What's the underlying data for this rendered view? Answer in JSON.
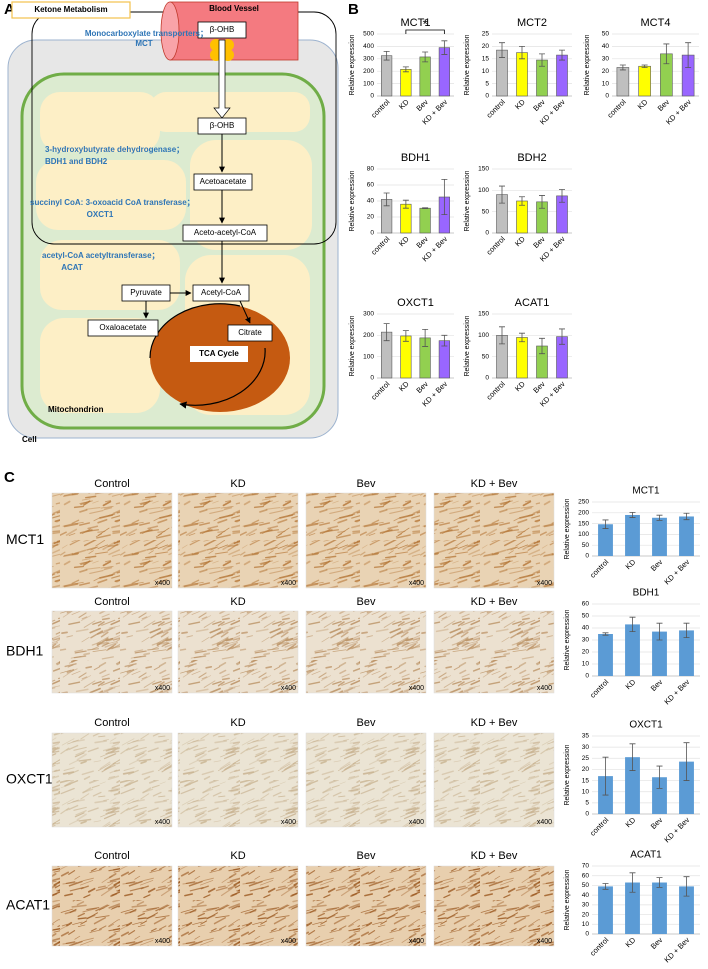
{
  "panel_labels": [
    "A",
    "B",
    "C"
  ],
  "diagram": {
    "title": "Ketone Metabolism",
    "blood_vessel": "Blood Vessel",
    "nodes": [
      "β-OHB",
      "β-OHB",
      "Acetoacetate",
      "Aceto-acetyl-CoA",
      "Pyruvate",
      "Acetyl-CoA",
      "Oxaloacetate",
      "Citrate",
      "TCA Cycle"
    ],
    "enzymes": [
      [
        "Monocarboxylate transporters；",
        "MCT"
      ],
      [
        "3-hydroxybutyrate dehydrogenase；",
        "BDH1 and BDH2"
      ],
      [
        "succinyl CoA: 3-oxoacid CoA transferase；",
        "OXCT1"
      ],
      [
        "acetyl-CoA acetyltransferase；",
        "ACAT"
      ]
    ],
    "compartments": [
      "Mitochondrion",
      "Cell"
    ]
  },
  "chart_data": [
    {
      "type": "bar",
      "title": "MCT1",
      "y_label": "Relative expression",
      "categories": [
        "control",
        "KD",
        "Bev",
        "KD + Bev"
      ],
      "values": [
        325,
        215,
        315,
        390
      ],
      "errors": [
        35,
        20,
        40,
        55
      ],
      "colors": [
        "#bfbfbf",
        "#ffff00",
        "#92d050",
        "#9966ff"
      ],
      "ylim": [
        0,
        500
      ],
      "yticks": [
        0,
        100,
        200,
        300,
        400,
        500
      ],
      "grid": true,
      "significance": {
        "label": "*",
        "between": [
          "KD",
          "KD + Bev"
        ]
      }
    },
    {
      "type": "bar",
      "title": "MCT2",
      "y_label": "Relative expression",
      "categories": [
        "control",
        "KD",
        "Bev",
        "KD + Bev"
      ],
      "values": [
        18.5,
        17.5,
        14.5,
        16.5
      ],
      "errors": [
        3,
        2.5,
        2.5,
        2
      ],
      "colors": [
        "#bfbfbf",
        "#ffff00",
        "#92d050",
        "#9966ff"
      ],
      "ylim": [
        0,
        25
      ],
      "yticks": [
        0,
        5,
        10,
        15,
        20,
        25
      ],
      "grid": true
    },
    {
      "type": "bar",
      "title": "MCT4",
      "y_label": "Relative expression",
      "categories": [
        "control",
        "KD",
        "Bev",
        "KD + Bev"
      ],
      "values": [
        23,
        24,
        34,
        33
      ],
      "errors": [
        2,
        1,
        8,
        10
      ],
      "colors": [
        "#bfbfbf",
        "#ffff00",
        "#92d050",
        "#9966ff"
      ],
      "ylim": [
        0,
        50
      ],
      "yticks": [
        0,
        10,
        20,
        30,
        40,
        50
      ],
      "grid": true
    },
    {
      "type": "bar",
      "title": "BDH1",
      "y_label": "Relative expression",
      "categories": [
        "control",
        "KD",
        "Bev",
        "KD + Bev"
      ],
      "values": [
        42,
        36,
        31,
        45
      ],
      "errors": [
        8,
        5,
        0.5,
        22
      ],
      "colors": [
        "#bfbfbf",
        "#ffff00",
        "#92d050",
        "#9966ff"
      ],
      "ylim": [
        0,
        80
      ],
      "yticks": [
        0,
        20,
        40,
        60,
        80
      ],
      "grid": true
    },
    {
      "type": "bar",
      "title": "BDH2",
      "y_label": "Relative expression",
      "categories": [
        "control",
        "KD",
        "Bev",
        "KD + Bev"
      ],
      "values": [
        90,
        75,
        73,
        87
      ],
      "errors": [
        20,
        10,
        15,
        15
      ],
      "colors": [
        "#bfbfbf",
        "#ffff00",
        "#92d050",
        "#9966ff"
      ],
      "ylim": [
        0,
        150
      ],
      "yticks": [
        0,
        50,
        100,
        150
      ],
      "grid": true
    },
    {
      "type": "bar",
      "title": "OXCT1",
      "y_label": "Relative expression",
      "categories": [
        "control",
        "KD",
        "Bev",
        "KD + Bev"
      ],
      "values": [
        215,
        197,
        188,
        175
      ],
      "errors": [
        40,
        25,
        40,
        25
      ],
      "colors": [
        "#bfbfbf",
        "#ffff00",
        "#92d050",
        "#9966ff"
      ],
      "ylim": [
        0,
        300
      ],
      "yticks": [
        0,
        100,
        200,
        300
      ],
      "grid": true
    },
    {
      "type": "bar",
      "title": "ACAT1",
      "y_label": "Relative expression",
      "categories": [
        "control",
        "KD",
        "Bev",
        "KD + Bev"
      ],
      "values": [
        100,
        95,
        75,
        97
      ],
      "errors": [
        20,
        10,
        18,
        18
      ],
      "colors": [
        "#bfbfbf",
        "#ffff00",
        "#92d050",
        "#9966ff"
      ],
      "ylim": [
        0,
        150
      ],
      "yticks": [
        0,
        50,
        100,
        150
      ],
      "grid": true
    },
    {
      "type": "bar",
      "title": "MCT1",
      "y_label": "Relative expression",
      "categories": [
        "control",
        "KD",
        "Bev",
        "KD + Bev"
      ],
      "values": [
        147,
        190,
        177,
        183
      ],
      "errors": [
        20,
        12,
        12,
        15
      ],
      "color": "#5b9bd5",
      "ylim": [
        0,
        250
      ],
      "yticks": [
        0,
        50,
        100,
        150,
        200,
        250
      ],
      "grid": true
    },
    {
      "type": "bar",
      "title": "BDH1",
      "y_label": "Relative expression",
      "categories": [
        "control",
        "KD",
        "Bev",
        "KD + Bev"
      ],
      "values": [
        35,
        43,
        37,
        38
      ],
      "errors": [
        1,
        6,
        7,
        6
      ],
      "color": "#5b9bd5",
      "ylim": [
        0,
        60
      ],
      "yticks": [
        0,
        10,
        20,
        30,
        40,
        50,
        60
      ],
      "grid": true
    },
    {
      "type": "bar",
      "title": "OXCT1",
      "y_label": "Relative expression",
      "categories": [
        "control",
        "KD",
        "Bev",
        "KD + Bev"
      ],
      "values": [
        17,
        25.5,
        16.5,
        23.5
      ],
      "errors": [
        8.5,
        6,
        5,
        8.5
      ],
      "color": "#5b9bd5",
      "ylim": [
        0,
        35
      ],
      "yticks": [
        0,
        5,
        10,
        15,
        20,
        25,
        30,
        35
      ],
      "grid": true
    },
    {
      "type": "bar",
      "title": "ACAT1",
      "y_label": "Relative expression",
      "categories": [
        "control",
        "KD",
        "Bev",
        "KD + Bev"
      ],
      "values": [
        49,
        53,
        53,
        49
      ],
      "errors": [
        3,
        10,
        5,
        10
      ],
      "color": "#5b9bd5",
      "ylim": [
        0,
        70
      ],
      "yticks": [
        0,
        10,
        20,
        30,
        40,
        50,
        60,
        70
      ],
      "grid": true
    }
  ],
  "ihc": {
    "rows": [
      {
        "marker": "MCT1",
        "columns": [
          "Control",
          "KD",
          "Bev",
          "KD + Bev"
        ],
        "magnification": [
          "x400",
          "x400",
          "x400",
          "x400"
        ]
      },
      {
        "marker": "BDH1",
        "columns": [
          "Control",
          "KD",
          "Bev",
          "KD + Bev"
        ],
        "magnification": [
          "x400",
          "x400",
          "x400",
          "x400"
        ]
      },
      {
        "marker": "OXCT1",
        "columns": [
          "Control",
          "KD",
          "Bev",
          "KD + Bev"
        ],
        "magnification": [
          "x400",
          "x400",
          "x400",
          "x400"
        ]
      },
      {
        "marker": "ACAT1",
        "columns": [
          "Control",
          "KD",
          "Bev",
          "KD + Bev"
        ],
        "magnification": [
          "x400",
          "x400",
          "x400",
          "x400"
        ]
      }
    ]
  }
}
